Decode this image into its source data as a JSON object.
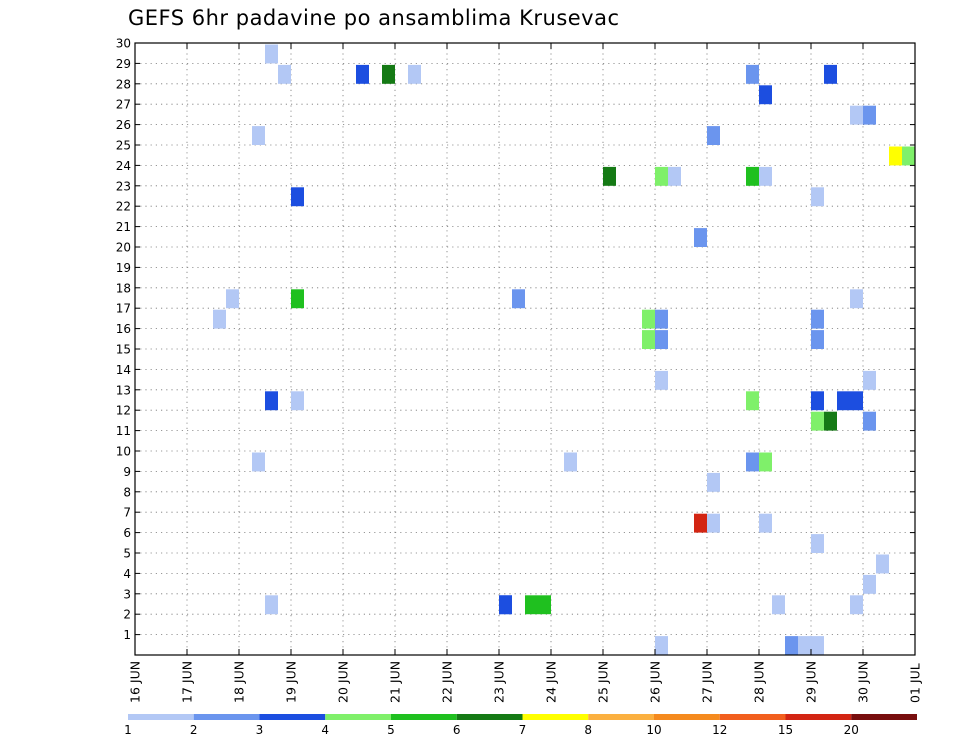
{
  "chart_data": {
    "type": "heatmap",
    "title": "GEFS 6hr padavine po ansamblima Krusevac",
    "x_tick_labels": [
      "16 JUN",
      "17 JUN",
      "18 JUN",
      "19 JUN",
      "20 JUN",
      "21 JUN",
      "22 JUN",
      "23 JUN",
      "24 JUN",
      "25 JUN",
      "26 JUN",
      "27 JUN",
      "28 JUN",
      "29 JUN",
      "30 JUN",
      "01 JUL"
    ],
    "x_range_steps": [
      0,
      60
    ],
    "y_tick_labels": [
      "1",
      "2",
      "3",
      "4",
      "5",
      "6",
      "7",
      "8",
      "9",
      "10",
      "11",
      "12",
      "13",
      "14",
      "15",
      "16",
      "17",
      "18",
      "19",
      "20",
      "21",
      "22",
      "23",
      "24",
      "25",
      "26",
      "27",
      "28",
      "29",
      "30"
    ],
    "y_range": [
      0,
      30
    ],
    "grid": true,
    "colorbar": {
      "labels": [
        "1",
        "2",
        "3",
        "4",
        "5",
        "6",
        "7",
        "8",
        "10",
        "12",
        "15",
        "20"
      ],
      "colors": [
        "#b3c8f5",
        "#6b95ee",
        "#1c4ee0",
        "#7ff06a",
        "#1fc01f",
        "#157a15",
        "#ffff00",
        "#fbb040",
        "#f58a1e",
        "#f25f1e",
        "#d32513",
        "#780e0e"
      ]
    },
    "cells": [
      {
        "step": 10,
        "member": 29,
        "class": 1
      },
      {
        "step": 11,
        "member": 28,
        "class": 1
      },
      {
        "step": 9,
        "member": 25,
        "class": 1
      },
      {
        "step": 6,
        "member": 16,
        "class": 1
      },
      {
        "step": 7,
        "member": 17,
        "class": 1
      },
      {
        "step": 9,
        "member": 9,
        "class": 1
      },
      {
        "step": 10,
        "member": 2,
        "class": 1
      },
      {
        "step": 12,
        "member": 12,
        "class": 1
      },
      {
        "step": 21,
        "member": 28,
        "class": 1
      },
      {
        "step": 33,
        "member": 9,
        "class": 1
      },
      {
        "step": 41,
        "member": 23,
        "class": 1
      },
      {
        "step": 40,
        "member": 13,
        "class": 1
      },
      {
        "step": 40,
        "member": 0,
        "class": 1
      },
      {
        "step": 44,
        "member": 8,
        "class": 1
      },
      {
        "step": 44,
        "member": 6,
        "class": 1
      },
      {
        "step": 48,
        "member": 23,
        "class": 1
      },
      {
        "step": 48,
        "member": 6,
        "class": 1
      },
      {
        "step": 49,
        "member": 2,
        "class": 1
      },
      {
        "step": 52,
        "member": 22,
        "class": 1
      },
      {
        "step": 52,
        "member": 5,
        "class": 1
      },
      {
        "step": 51,
        "member": 0,
        "class": 1
      },
      {
        "step": 52,
        "member": 0,
        "class": 1
      },
      {
        "step": 55,
        "member": 26,
        "class": 1
      },
      {
        "step": 55,
        "member": 17,
        "class": 1
      },
      {
        "step": 55,
        "member": 2,
        "class": 1
      },
      {
        "step": 56,
        "member": 13,
        "class": 1
      },
      {
        "step": 56,
        "member": 3,
        "class": 1
      },
      {
        "step": 57,
        "member": 4,
        "class": 1
      },
      {
        "step": 28,
        "member": 2,
        "class": 2
      },
      {
        "step": 29,
        "member": 17,
        "class": 2
      },
      {
        "step": 40,
        "member": 16,
        "class": 2
      },
      {
        "step": 40,
        "member": 15,
        "class": 2
      },
      {
        "step": 43,
        "member": 20,
        "class": 2
      },
      {
        "step": 44,
        "member": 25,
        "class": 2
      },
      {
        "step": 47,
        "member": 28,
        "class": 2
      },
      {
        "step": 47,
        "member": 9,
        "class": 2
      },
      {
        "step": 52,
        "member": 16,
        "class": 2
      },
      {
        "step": 52,
        "member": 15,
        "class": 2
      },
      {
        "step": 56,
        "member": 26,
        "class": 2
      },
      {
        "step": 56,
        "member": 11,
        "class": 2
      },
      {
        "step": 50,
        "member": 0,
        "class": 2
      },
      {
        "step": 17,
        "member": 28,
        "class": 3
      },
      {
        "step": 12,
        "member": 22,
        "class": 3
      },
      {
        "step": 10,
        "member": 12,
        "class": 3
      },
      {
        "step": 28,
        "member": 2,
        "class": 3
      },
      {
        "step": 48,
        "member": 27,
        "class": 3
      },
      {
        "step": 53,
        "member": 28,
        "class": 3
      },
      {
        "step": 52,
        "member": 12,
        "class": 3
      },
      {
        "step": 54,
        "member": 12,
        "class": 3
      },
      {
        "step": 55,
        "member": 12,
        "class": 3
      },
      {
        "step": 39,
        "member": 15,
        "class": 4
      },
      {
        "step": 39,
        "member": 16,
        "class": 4
      },
      {
        "step": 40,
        "member": 23,
        "class": 4
      },
      {
        "step": 48,
        "member": 9,
        "class": 4
      },
      {
        "step": 52,
        "member": 11,
        "class": 4
      },
      {
        "step": 47,
        "member": 12,
        "class": 4
      },
      {
        "step": 59,
        "member": 24,
        "class": 4
      },
      {
        "step": 12,
        "member": 17,
        "class": 5
      },
      {
        "step": 30,
        "member": 2,
        "class": 5
      },
      {
        "step": 31,
        "member": 2,
        "class": 5
      },
      {
        "step": 47,
        "member": 23,
        "class": 5
      },
      {
        "step": 19,
        "member": 28,
        "class": 6
      },
      {
        "step": 36,
        "member": 23,
        "class": 6
      },
      {
        "step": 53,
        "member": 11,
        "class": 6
      },
      {
        "step": 58,
        "member": 24,
        "class": 7
      },
      {
        "step": 43,
        "member": 6,
        "class": 11
      }
    ]
  }
}
